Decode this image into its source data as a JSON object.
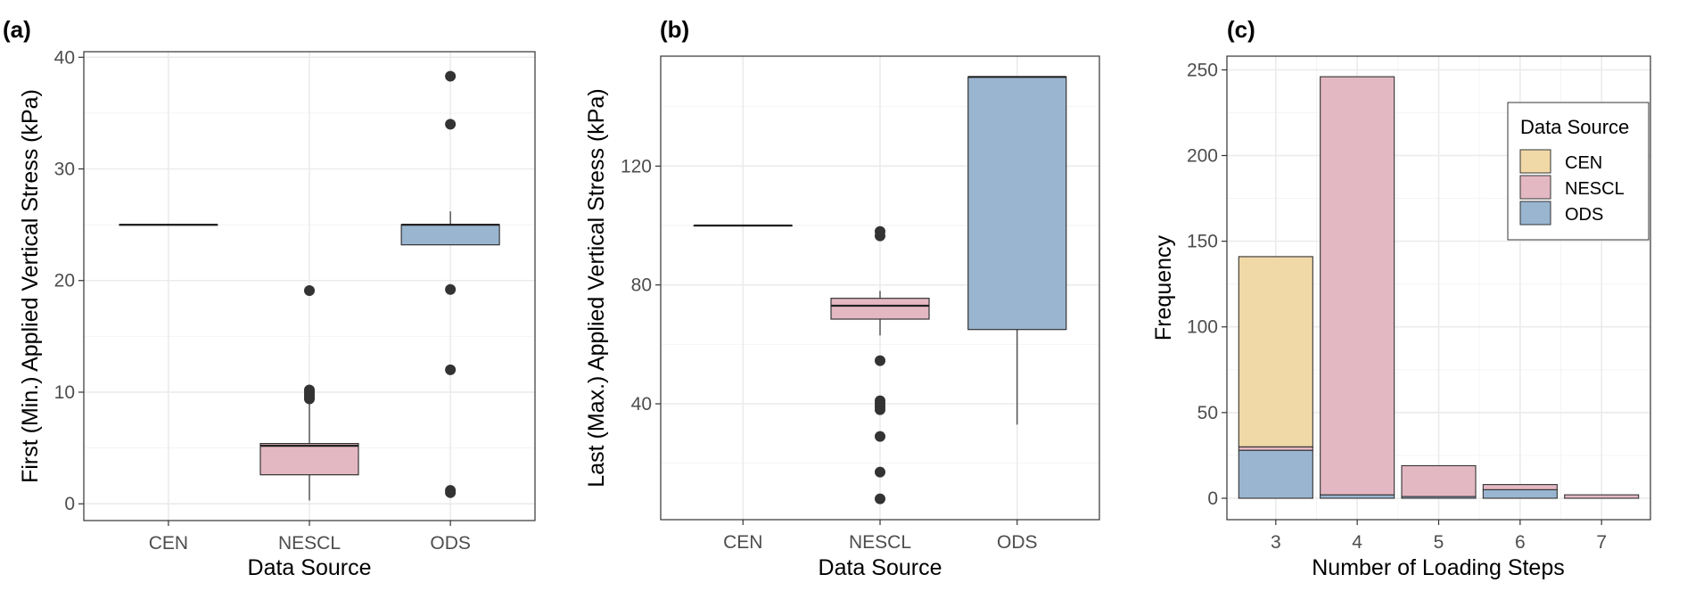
{
  "chart_data": [
    {
      "type": "box",
      "panel_label": "(a)",
      "xlabel": "Data Source",
      "ylabel": "First (Min.) Applied Vertical Stress (kPa)",
      "categories": [
        "CEN",
        "NESCL",
        "ODS"
      ],
      "ylim": [
        -1.5,
        40.5
      ],
      "yticks": [
        0,
        10,
        20,
        30,
        40
      ],
      "ytick_labels": [
        "0",
        "10",
        "20",
        "30",
        "40"
      ],
      "grid": true,
      "boxes": [
        {
          "category": "CEN",
          "fill": "#F0D9A7",
          "q1": 25,
          "median": 25,
          "q3": 25,
          "whisker_low": 25,
          "whisker_high": 25,
          "outliers": []
        },
        {
          "category": "NESCL",
          "fill": "#E4B8C3",
          "q1": 2.6,
          "median": 5.2,
          "q3": 5.4,
          "whisker_low": 0.3,
          "whisker_high": 9.0,
          "outliers": [
            9.4,
            9.6,
            9.8,
            10.0,
            10.2,
            19.1
          ]
        },
        {
          "category": "ODS",
          "fill": "#9AB5D0",
          "q1": 23.2,
          "median": 25,
          "q3": 25,
          "whisker_low": 23.2,
          "whisker_high": 26.2,
          "outliers": [
            1.0,
            1.2,
            12.0,
            19.2,
            34.0,
            38.3
          ]
        }
      ]
    },
    {
      "type": "box",
      "panel_label": "(b)",
      "xlabel": "Data Source",
      "ylabel": "Last (Max.) Applied Vertical Stress (kPa)",
      "categories": [
        "CEN",
        "NESCL",
        "ODS"
      ],
      "ylim": [
        1,
        157
      ],
      "yticks": [
        40,
        80,
        120
      ],
      "ytick_labels": [
        "40",
        "80",
        "120"
      ],
      "grid": true,
      "boxes": [
        {
          "category": "CEN",
          "fill": "#F0D9A7",
          "q1": 100,
          "median": 100,
          "q3": 100,
          "whisker_low": 100,
          "whisker_high": 100,
          "outliers": []
        },
        {
          "category": "NESCL",
          "fill": "#E4B8C3",
          "q1": 68.5,
          "median": 73,
          "q3": 75.5,
          "whisker_low": 63,
          "whisker_high": 78,
          "outliers": [
            8,
            17,
            29,
            38,
            39,
            40,
            41,
            54.5,
            96.5,
            98
          ]
        },
        {
          "category": "ODS",
          "fill": "#9AB5D0",
          "q1": 65,
          "median": 150,
          "q3": 150,
          "whisker_low": 33,
          "whisker_high": 150,
          "outliers": []
        }
      ]
    },
    {
      "type": "bar",
      "stacked": true,
      "panel_label": "(c)",
      "xlabel": "Number of Loading Steps",
      "ylabel": "Frequency",
      "categories": [
        "3",
        "4",
        "5",
        "6",
        "7"
      ],
      "ylim": [
        -12.5,
        258
      ],
      "yticks": [
        0,
        50,
        100,
        150,
        200,
        250
      ],
      "ytick_labels": [
        "0",
        "50",
        "100",
        "150",
        "200",
        "250"
      ],
      "grid": true,
      "legend": {
        "title": "Data Source",
        "position": "top-right"
      },
      "series": [
        {
          "name": "ODS",
          "color": "#9AB5D0",
          "values": [
            28,
            2,
            1,
            5,
            0
          ]
        },
        {
          "name": "NESCL",
          "color": "#E4B8C3",
          "values": [
            2,
            244,
            18,
            3,
            2
          ]
        },
        {
          "name": "CEN",
          "color": "#F0D9A7",
          "values": [
            111,
            0,
            0,
            0,
            0
          ]
        }
      ],
      "legend_order": [
        "CEN",
        "NESCL",
        "ODS"
      ]
    }
  ]
}
